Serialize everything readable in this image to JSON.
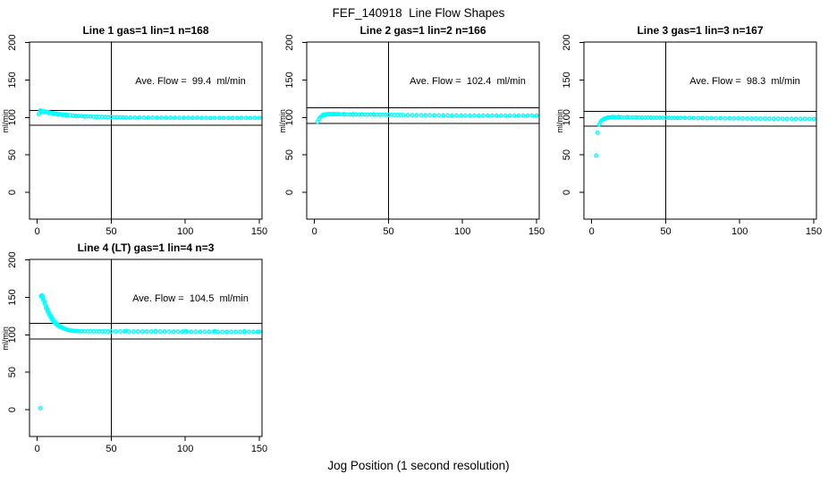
{
  "figure": {
    "title": "FEF_140918  Line Flow Shapes",
    "xlabel": "Jog Position (1 second resolution)",
    "background": "#FFFFFF",
    "marker_color": "#00FFFF",
    "line_color": "#000000"
  },
  "chart_data": [
    {
      "type": "scatter",
      "title": "Line 1 gas=1 lin=1 n=168",
      "annotation": "Ave. Flow =  99.4  ml/min",
      "ave_flow_ml_min": 99.4,
      "n": 168,
      "ylabel": "ml/min",
      "xlim": [
        0,
        150
      ],
      "ylim": [
        0,
        200
      ],
      "xticks": [
        0,
        50,
        100,
        150
      ],
      "yticks": [
        0,
        50,
        100,
        150,
        200
      ],
      "hlines": [
        109.3,
        89.5
      ],
      "vline": 50,
      "legend": "none",
      "grid": false,
      "points": [
        [
          1,
          104.5
        ],
        [
          2,
          109.2
        ],
        [
          3,
          108.8
        ],
        [
          3,
          107.6
        ],
        [
          4,
          108.3
        ],
        [
          5,
          107.9
        ],
        [
          5,
          106.9
        ],
        [
          6,
          107.4
        ],
        [
          7,
          107
        ],
        [
          8,
          106.6
        ],
        [
          8,
          105.7
        ],
        [
          9,
          106.2
        ],
        [
          10,
          105.8
        ],
        [
          11,
          105.5
        ],
        [
          11,
          104.7
        ],
        [
          12,
          105.2
        ],
        [
          13,
          104.9
        ],
        [
          14,
          104.6
        ],
        [
          14,
          103.8
        ],
        [
          15,
          104.3
        ],
        [
          16,
          104.1
        ],
        [
          17,
          103.9
        ],
        [
          17,
          103.2
        ],
        [
          18,
          103.7
        ],
        [
          19,
          103.5
        ],
        [
          20,
          103.3
        ],
        [
          20,
          102.6
        ],
        [
          22,
          103
        ],
        [
          24,
          102.6
        ],
        [
          26,
          102.3
        ],
        [
          26,
          101.7
        ],
        [
          28,
          102
        ],
        [
          30,
          101.8
        ],
        [
          32,
          101.6
        ],
        [
          32,
          101
        ],
        [
          34,
          101.4
        ],
        [
          36,
          101.2
        ],
        [
          38,
          101
        ],
        [
          40,
          100.9
        ],
        [
          40,
          100.3
        ],
        [
          42,
          100.7
        ],
        [
          44,
          100.6
        ],
        [
          46,
          100.5
        ],
        [
          48,
          100.4
        ],
        [
          50,
          100.3
        ],
        [
          52,
          100.2
        ],
        [
          54,
          100.2
        ],
        [
          56,
          100.1
        ],
        [
          58,
          100
        ],
        [
          60,
          100
        ],
        [
          63,
          99.9
        ],
        [
          66,
          99.8
        ],
        [
          69,
          99.8
        ],
        [
          72,
          99.7
        ],
        [
          75,
          99.7
        ],
        [
          78,
          99.7
        ],
        [
          81,
          99.6
        ],
        [
          84,
          99.6
        ],
        [
          87,
          99.6
        ],
        [
          90,
          99.6
        ],
        [
          93,
          99.5
        ],
        [
          96,
          99.5
        ],
        [
          99,
          99.5
        ],
        [
          102,
          99.5
        ],
        [
          105,
          99.5
        ],
        [
          108,
          99.5
        ],
        [
          111,
          99.4
        ],
        [
          114,
          99.4
        ],
        [
          117,
          99.4
        ],
        [
          120,
          99.4
        ],
        [
          123,
          99.4
        ],
        [
          126,
          99.4
        ],
        [
          129,
          99.4
        ],
        [
          132,
          99.4
        ],
        [
          135,
          99.4
        ],
        [
          138,
          99.3
        ],
        [
          141,
          99.3
        ],
        [
          144,
          99.3
        ],
        [
          147,
          99.3
        ],
        [
          150,
          99.3
        ]
      ]
    },
    {
      "type": "scatter",
      "title": "Line 2 gas=1 lin=2 n=166",
      "annotation": "Ave. Flow =  102.4  ml/min",
      "ave_flow_ml_min": 102.4,
      "n": 166,
      "ylabel": "ml/min",
      "xlim": [
        0,
        150
      ],
      "ylim": [
        0,
        200
      ],
      "xticks": [
        0,
        50,
        100,
        150
      ],
      "yticks": [
        0,
        50,
        100,
        150,
        200
      ],
      "hlines": [
        112.6,
        92.2
      ],
      "vline": 50,
      "legend": "none",
      "grid": false,
      "points": [
        [
          2,
          94.2
        ],
        [
          3,
          98
        ],
        [
          4,
          100.5
        ],
        [
          5,
          101.9
        ],
        [
          6,
          102.9
        ],
        [
          6,
          103.5
        ],
        [
          7,
          103.4
        ],
        [
          8,
          103.8
        ],
        [
          8,
          104.3
        ],
        [
          9,
          104
        ],
        [
          10,
          104.1
        ],
        [
          10,
          104.6
        ],
        [
          11,
          104.2
        ],
        [
          12,
          104.2
        ],
        [
          13,
          104.2
        ],
        [
          13,
          104.7
        ],
        [
          14,
          104.2
        ],
        [
          15,
          104.2
        ],
        [
          16,
          104.1
        ],
        [
          16,
          104.6
        ],
        [
          18,
          104.1
        ],
        [
          20,
          104
        ],
        [
          20,
          104.5
        ],
        [
          22,
          104
        ],
        [
          24,
          103.9
        ],
        [
          26,
          103.9
        ],
        [
          26,
          104.3
        ],
        [
          28,
          103.9
        ],
        [
          30,
          103.8
        ],
        [
          32,
          103.8
        ],
        [
          32,
          104.2
        ],
        [
          34,
          103.7
        ],
        [
          36,
          103.7
        ],
        [
          38,
          103.7
        ],
        [
          40,
          103.6
        ],
        [
          40,
          104
        ],
        [
          42,
          103.6
        ],
        [
          44,
          103.5
        ],
        [
          46,
          103.5
        ],
        [
          48,
          103.5
        ],
        [
          50,
          103.4
        ],
        [
          52,
          103.4
        ],
        [
          54,
          103.3
        ],
        [
          56,
          103.3
        ],
        [
          58,
          103.3
        ],
        [
          60,
          103.2
        ],
        [
          63,
          103.2
        ],
        [
          66,
          103.1
        ],
        [
          69,
          103
        ],
        [
          72,
          103
        ],
        [
          75,
          102.9
        ],
        [
          78,
          102.9
        ],
        [
          81,
          102.8
        ],
        [
          84,
          102.8
        ],
        [
          87,
          102.7
        ],
        [
          90,
          102.7
        ],
        [
          93,
          102.6
        ],
        [
          96,
          102.6
        ],
        [
          99,
          102.6
        ],
        [
          102,
          102.5
        ],
        [
          105,
          102.5
        ],
        [
          108,
          102.5
        ],
        [
          111,
          102.5
        ],
        [
          114,
          102.4
        ],
        [
          117,
          102.4
        ],
        [
          120,
          102.4
        ],
        [
          123,
          102.4
        ],
        [
          126,
          102.4
        ],
        [
          129,
          102.4
        ],
        [
          132,
          102.4
        ],
        [
          135,
          102.4
        ],
        [
          138,
          102.4
        ],
        [
          141,
          102.4
        ],
        [
          144,
          102.4
        ],
        [
          147,
          102.4
        ],
        [
          150,
          102.4
        ]
      ]
    },
    {
      "type": "scatter",
      "title": "Line 3 gas=1 lin=3 n=167",
      "annotation": "Ave. Flow =  98.3  ml/min",
      "ave_flow_ml_min": 98.3,
      "n": 167,
      "ylabel": "ml/min",
      "xlim": [
        0,
        150
      ],
      "ylim": [
        0,
        200
      ],
      "xticks": [
        0,
        50,
        100,
        150
      ],
      "yticks": [
        0,
        50,
        100,
        150,
        200
      ],
      "hlines": [
        108.1,
        88.5
      ],
      "vline": 50,
      "legend": "none",
      "grid": false,
      "points": [
        [
          3,
          49
        ],
        [
          4,
          79.5
        ],
        [
          5,
          90.5
        ],
        [
          6,
          94.2
        ],
        [
          7,
          96.3
        ],
        [
          8,
          97.7
        ],
        [
          9,
          98.6
        ],
        [
          10,
          99.2
        ],
        [
          11,
          99.5
        ],
        [
          11,
          100
        ],
        [
          12,
          99.8
        ],
        [
          13,
          100
        ],
        [
          14,
          100.1
        ],
        [
          14,
          100.6
        ],
        [
          15,
          100.2
        ],
        [
          16,
          100.2
        ],
        [
          18,
          100.1
        ],
        [
          18,
          100.6
        ],
        [
          20,
          100.1
        ],
        [
          22,
          100
        ],
        [
          24,
          99.9
        ],
        [
          24,
          100.4
        ],
        [
          26,
          99.9
        ],
        [
          28,
          99.9
        ],
        [
          30,
          99.8
        ],
        [
          30,
          100.2
        ],
        [
          32,
          99.8
        ],
        [
          34,
          99.8
        ],
        [
          36,
          99.7
        ],
        [
          38,
          99.7
        ],
        [
          40,
          99.7
        ],
        [
          40,
          100
        ],
        [
          42,
          99.6
        ],
        [
          44,
          99.6
        ],
        [
          46,
          99.6
        ],
        [
          48,
          99.5
        ],
        [
          50,
          99.5
        ],
        [
          52,
          99.5
        ],
        [
          54,
          99.4
        ],
        [
          56,
          99.4
        ],
        [
          58,
          99.4
        ],
        [
          60,
          99.3
        ],
        [
          63,
          99.3
        ],
        [
          66,
          99.2
        ],
        [
          69,
          99.2
        ],
        [
          72,
          99.1
        ],
        [
          75,
          99.1
        ],
        [
          78,
          99
        ],
        [
          81,
          99
        ],
        [
          84,
          98.9
        ],
        [
          87,
          98.9
        ],
        [
          90,
          98.8
        ],
        [
          93,
          98.8
        ],
        [
          96,
          98.7
        ],
        [
          99,
          98.7
        ],
        [
          102,
          98.6
        ],
        [
          105,
          98.6
        ],
        [
          108,
          98.5
        ],
        [
          111,
          98.5
        ],
        [
          114,
          98.4
        ],
        [
          117,
          98.4
        ],
        [
          120,
          98.3
        ],
        [
          123,
          98.3
        ],
        [
          126,
          98.3
        ],
        [
          129,
          98.2
        ],
        [
          132,
          98.2
        ],
        [
          135,
          98.2
        ],
        [
          138,
          98.1
        ],
        [
          141,
          98.1
        ],
        [
          144,
          98.1
        ],
        [
          147,
          98
        ],
        [
          150,
          98
        ]
      ]
    },
    {
      "type": "scatter",
      "title": "Line 4 (LT) gas=1 lin=4 n=3",
      "annotation": "Ave. Flow =  104.5  ml/min",
      "ave_flow_ml_min": 104.5,
      "n": 3,
      "ylabel": "ml/min",
      "xlim": [
        0,
        150
      ],
      "ylim": [
        0,
        200
      ],
      "xticks": [
        0,
        50,
        100,
        150
      ],
      "yticks": [
        0,
        50,
        100,
        150,
        200
      ],
      "hlines": [
        115.0,
        94.1
      ],
      "vline": 50,
      "legend": "none",
      "grid": false,
      "points": [
        [
          2,
          2
        ],
        [
          2.5,
          151.5
        ],
        [
          3,
          152.5
        ],
        [
          3,
          151.2
        ],
        [
          3.5,
          152
        ],
        [
          4,
          149.5
        ],
        [
          4,
          146.8
        ],
        [
          5,
          144
        ],
        [
          5,
          141.5
        ],
        [
          6,
          138
        ],
        [
          6,
          135.5
        ],
        [
          7,
          133.5
        ],
        [
          7,
          131
        ],
        [
          8,
          129.3
        ],
        [
          8,
          127
        ],
        [
          9,
          125.5
        ],
        [
          9,
          123.5
        ],
        [
          10,
          122.2
        ],
        [
          10,
          120.4
        ],
        [
          11,
          119.3
        ],
        [
          11,
          117.8
        ],
        [
          12,
          117
        ],
        [
          12,
          115.6
        ],
        [
          13,
          115
        ],
        [
          13,
          113.8
        ],
        [
          14,
          113.2
        ],
        [
          14,
          112.1
        ],
        [
          15,
          111.7
        ],
        [
          15,
          110.7
        ],
        [
          16,
          110.4
        ],
        [
          17,
          109.3
        ],
        [
          18,
          108.4
        ],
        [
          19,
          107.6
        ],
        [
          20,
          106.9
        ],
        [
          21,
          106.4
        ],
        [
          22,
          105.9
        ],
        [
          23,
          105.6
        ],
        [
          24,
          105.3
        ],
        [
          25,
          105.1
        ],
        [
          26,
          105
        ],
        [
          27,
          104.9
        ],
        [
          28,
          104.8
        ],
        [
          30,
          104.7
        ],
        [
          32,
          104.7
        ],
        [
          34,
          104.6
        ],
        [
          36,
          104.6
        ],
        [
          38,
          104.6
        ],
        [
          40,
          104.6
        ],
        [
          42,
          104.5
        ],
        [
          44,
          104.5
        ],
        [
          46,
          104.5
        ],
        [
          48,
          104.5
        ],
        [
          50,
          104.5
        ],
        [
          53,
          104.5
        ],
        [
          56,
          104.5
        ],
        [
          59,
          104.5
        ],
        [
          60,
          105.2
        ],
        [
          62,
          104.4
        ],
        [
          65,
          104.4
        ],
        [
          68,
          104.4
        ],
        [
          71,
          104.4
        ],
        [
          74,
          104.3
        ],
        [
          77,
          104.3
        ],
        [
          80,
          104.3
        ],
        [
          80,
          105
        ],
        [
          83,
          104.3
        ],
        [
          86,
          104.3
        ],
        [
          89,
          104.2
        ],
        [
          92,
          104.2
        ],
        [
          95,
          104.2
        ],
        [
          98,
          104.2
        ],
        [
          100,
          104.9
        ],
        [
          101,
          104.2
        ],
        [
          104,
          104.1
        ],
        [
          107,
          104.1
        ],
        [
          110,
          104.1
        ],
        [
          113,
          104.1
        ],
        [
          116,
          104.1
        ],
        [
          119,
          104.1
        ],
        [
          120,
          104.8
        ],
        [
          122,
          104
        ],
        [
          125,
          104
        ],
        [
          128,
          104
        ],
        [
          131,
          104
        ],
        [
          134,
          104
        ],
        [
          137,
          104
        ],
        [
          140,
          104
        ],
        [
          140,
          104.7
        ],
        [
          143,
          104
        ],
        [
          146,
          104
        ],
        [
          149,
          104
        ],
        [
          150,
          104
        ]
      ]
    }
  ]
}
